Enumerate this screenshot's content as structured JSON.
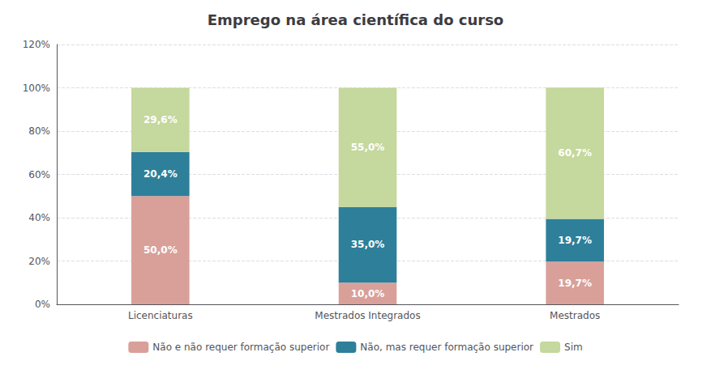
{
  "chart_data": {
    "type": "bar",
    "stacked": true,
    "title": "Emprego na área científica do curso",
    "categories": [
      "Licenciaturas",
      "Mestrados Integrados",
      "Mestrados"
    ],
    "series": [
      {
        "name": "Não e não requer formação superior",
        "color": "#d9a09a",
        "values": [
          50.0,
          10.0,
          19.7
        ],
        "value_labels": [
          "50,0%",
          "10,0%",
          "19,7%"
        ]
      },
      {
        "name": "Não, mas requer formação superior",
        "color": "#2e7f99",
        "values": [
          20.4,
          35.0,
          19.7
        ],
        "value_labels": [
          "20,4%",
          "35,0%",
          "19,7%"
        ]
      },
      {
        "name": "Sim",
        "color": "#c5d89d",
        "values": [
          29.6,
          55.0,
          60.7
        ],
        "value_labels": [
          "29,6%",
          "55,0%",
          "60,7%"
        ]
      }
    ],
    "ylim": [
      0,
      120
    ],
    "yticks": [
      {
        "value": 0,
        "label": "0%"
      },
      {
        "value": 20,
        "label": "20%"
      },
      {
        "value": 40,
        "label": "40%"
      },
      {
        "value": 60,
        "label": "60%"
      },
      {
        "value": 80,
        "label": "80%"
      },
      {
        "value": 100,
        "label": "100%"
      },
      {
        "value": 120,
        "label": "120%"
      }
    ],
    "grid": true,
    "legend": "bottom",
    "data_labels": true
  }
}
